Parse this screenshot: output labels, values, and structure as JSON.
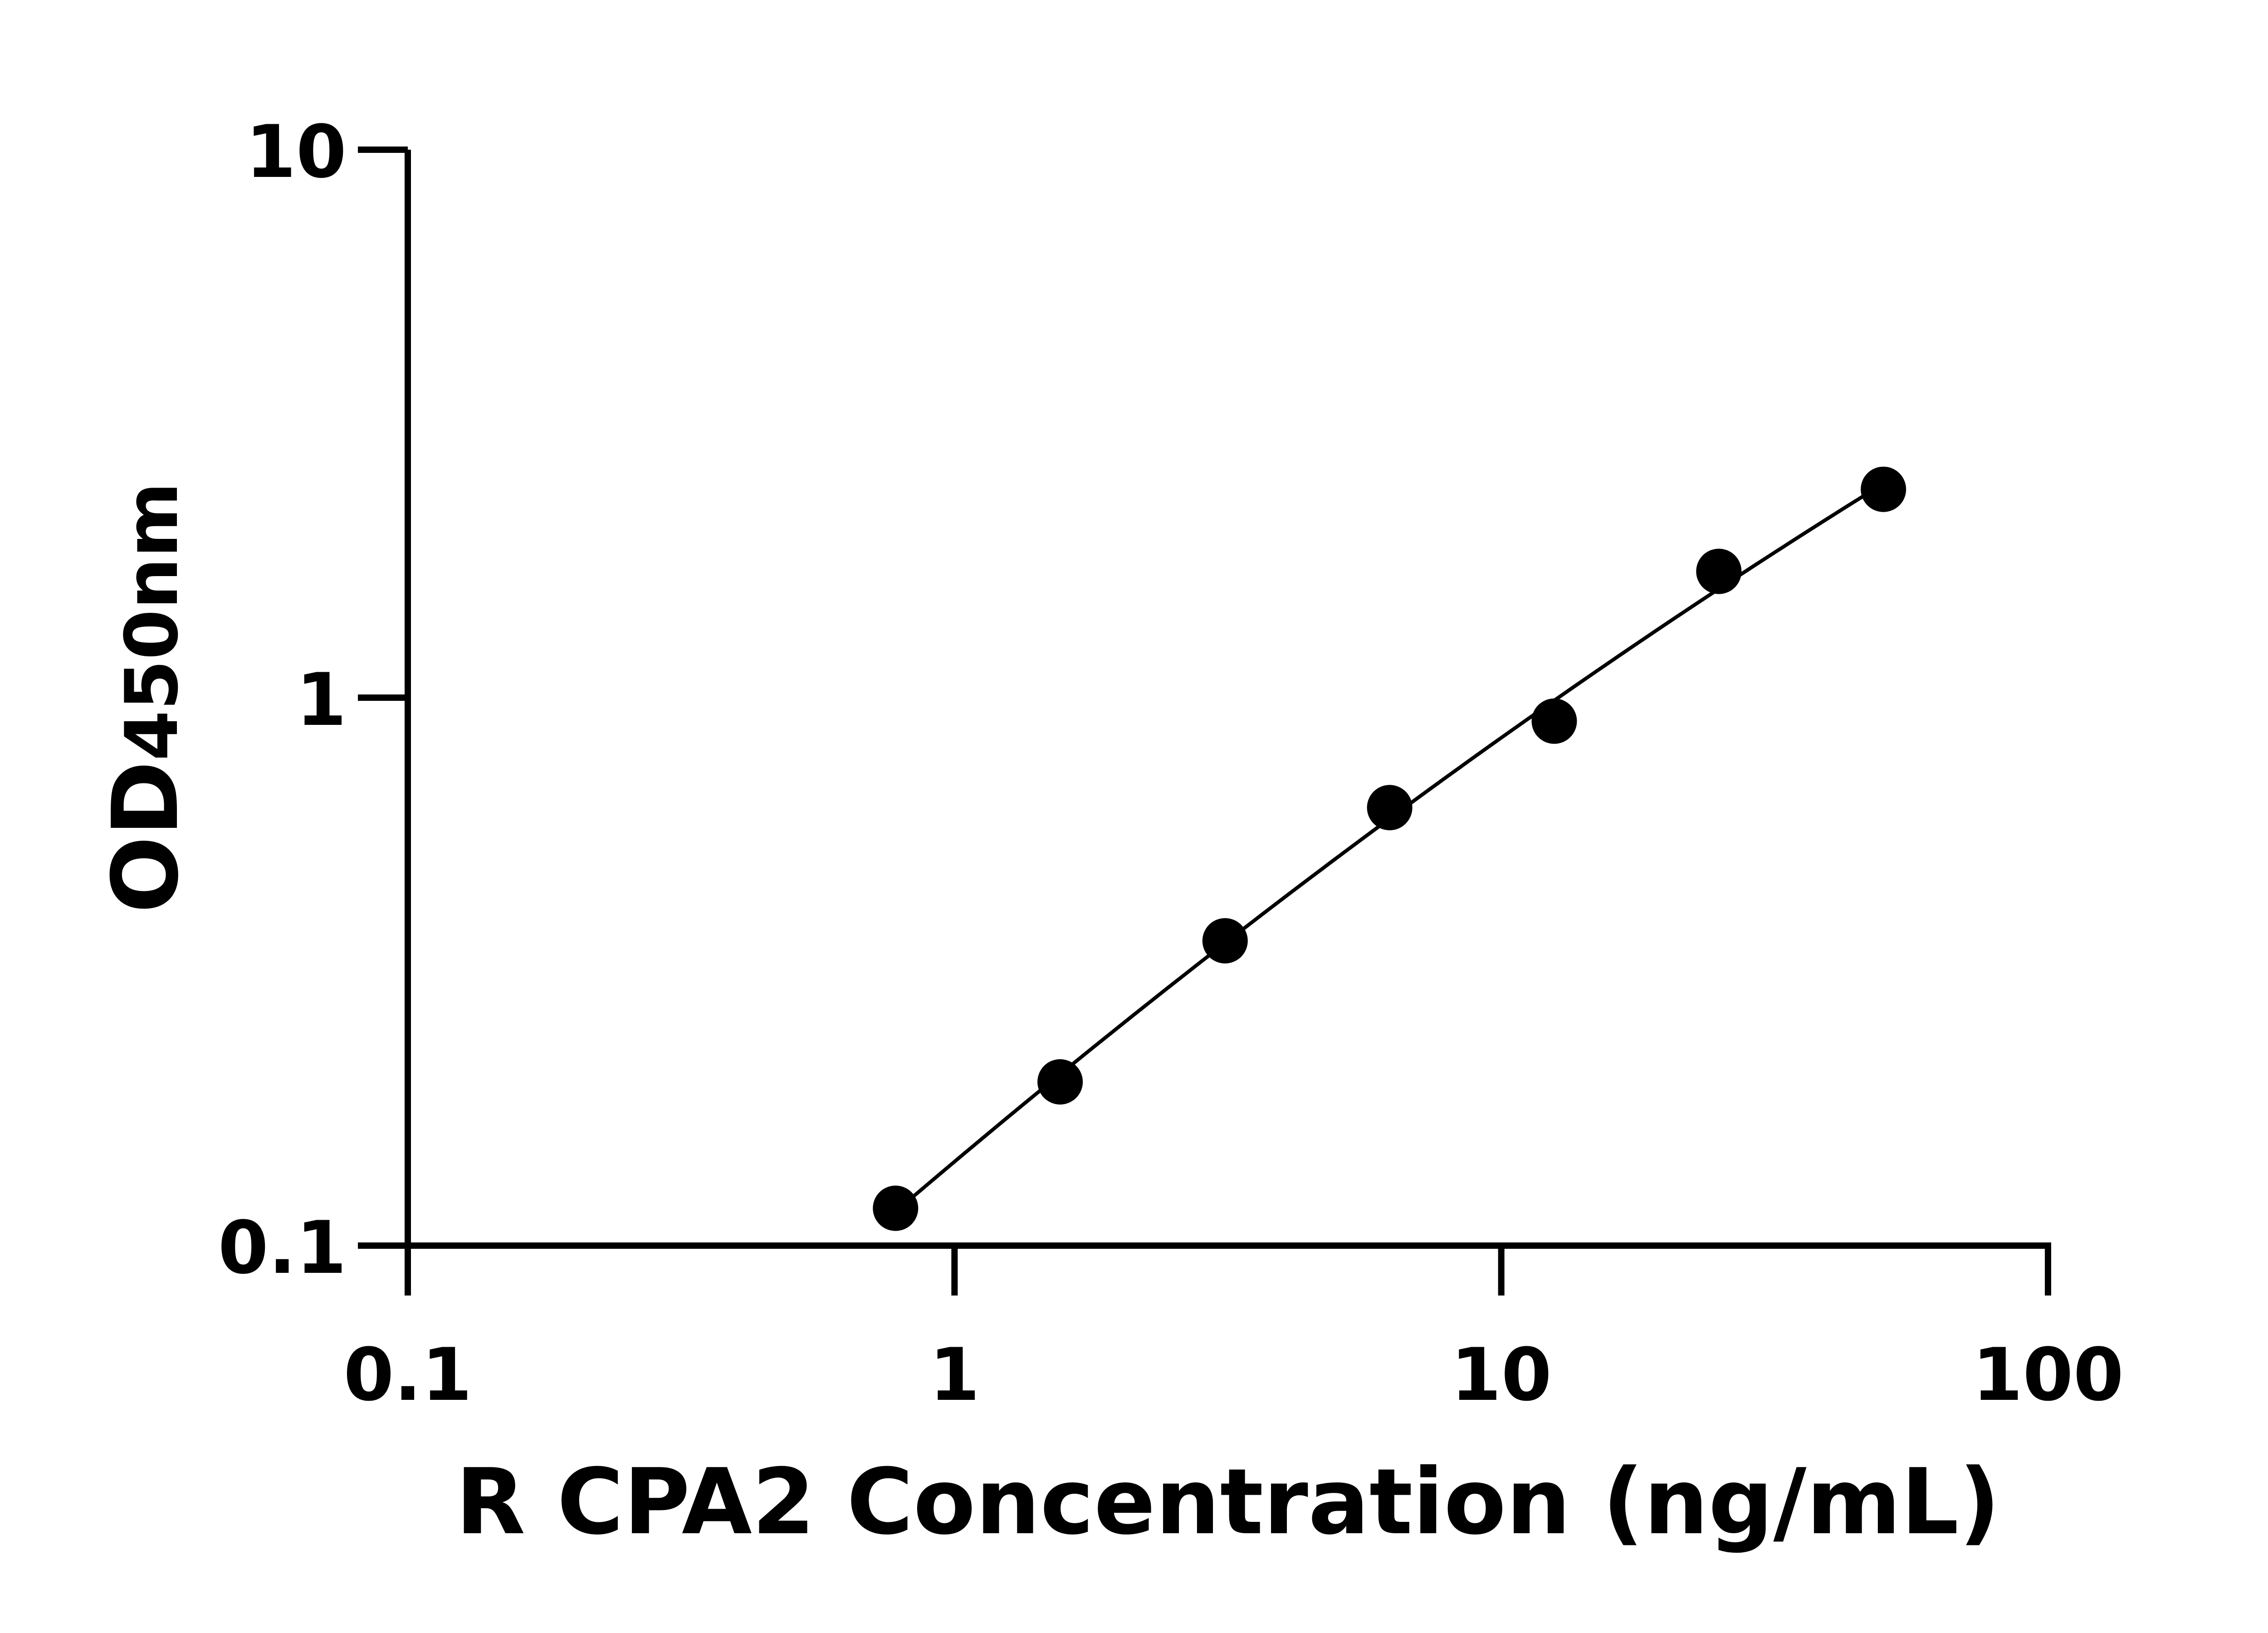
{
  "chart_data": {
    "type": "scatter",
    "title": "",
    "xlabel": "R CPA2 Concentration (ng/mL)",
    "ylabel_main": "OD",
    "ylabel_sub": "450nm",
    "xscale": "log",
    "yscale": "log",
    "xlim": [
      0.1,
      100
    ],
    "ylim": [
      0.1,
      10
    ],
    "xticks": [
      "0.1",
      "1",
      "10",
      "100"
    ],
    "yticks": [
      "0.1",
      "1",
      "10"
    ],
    "grid": false,
    "x": [
      0.78,
      1.56,
      3.125,
      6.25,
      12.5,
      25,
      50
    ],
    "y": [
      0.117,
      0.199,
      0.36,
      0.63,
      0.906,
      1.7,
      2.4
    ],
    "marker_color": "#000000"
  }
}
